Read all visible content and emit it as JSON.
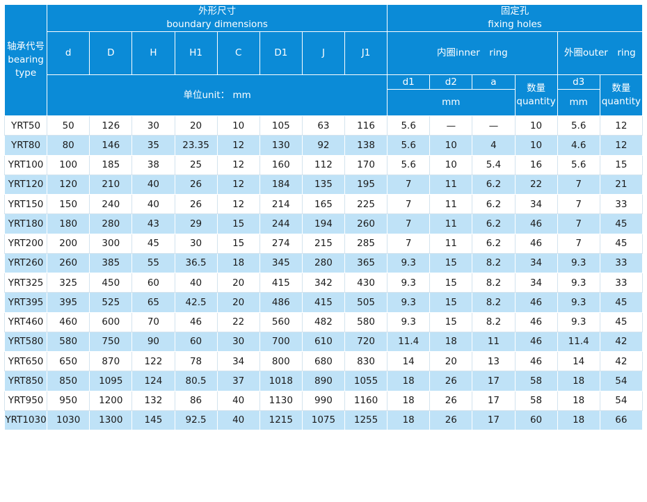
{
  "header": {
    "type_label": [
      "轴承代号",
      "bearing",
      "type"
    ],
    "groups": [
      {
        "title": "外形尺寸",
        "subtitle": "boundary dimensions"
      },
      {
        "title": "固定孔",
        "subtitle": "fixing holes"
      }
    ],
    "columns": [
      "d",
      "D",
      "H",
      "H1",
      "C",
      "D1",
      "J",
      "J1"
    ],
    "rings": [
      "内圈inner　ring",
      "外圈outer　ring"
    ],
    "unit": "单位unit：  mm",
    "hole_columns": [
      "d1",
      "d2",
      "a",
      "d3"
    ],
    "quantity_labels": [
      [
        "数量",
        "quantity"
      ],
      [
        "数量",
        "quantity"
      ]
    ],
    "mm_labels": [
      "mm",
      "mm"
    ]
  },
  "table": {
    "rows": [
      [
        "YRT50",
        50,
        126,
        30,
        20,
        10,
        105,
        63,
        116,
        5.6,
        "—",
        "—",
        10,
        5.6,
        12
      ],
      [
        "YRT80",
        80,
        146,
        35,
        23.35,
        12,
        130,
        92,
        138,
        5.6,
        10,
        4,
        10,
        4.6,
        12
      ],
      [
        "YRT100",
        100,
        185,
        38,
        25,
        12,
        160,
        112,
        170,
        5.6,
        10,
        5.4,
        16,
        5.6,
        15
      ],
      [
        "YRT120",
        120,
        210,
        40,
        26,
        12,
        184,
        135,
        195,
        7,
        11,
        6.2,
        22,
        7,
        21
      ],
      [
        "YRT150",
        150,
        240,
        40,
        26,
        12,
        214,
        165,
        225,
        7,
        11,
        6.2,
        34,
        7,
        33
      ],
      [
        "YRT180",
        180,
        280,
        43,
        29,
        15,
        244,
        194,
        260,
        7,
        11,
        6.2,
        46,
        7,
        45
      ],
      [
        "YRT200",
        200,
        300,
        45,
        30,
        15,
        274,
        215,
        285,
        7,
        11,
        6.2,
        46,
        7,
        45
      ],
      [
        "YRT260",
        260,
        385,
        55,
        36.5,
        18,
        345,
        280,
        365,
        9.3,
        15,
        8.2,
        34,
        9.3,
        33
      ],
      [
        "YRT325",
        325,
        450,
        60,
        40,
        20,
        415,
        342,
        430,
        9.3,
        15,
        8.2,
        34,
        9.3,
        33
      ],
      [
        "YRT395",
        395,
        525,
        65,
        42.5,
        20,
        486,
        415,
        505,
        9.3,
        15,
        8.2,
        46,
        9.3,
        45
      ],
      [
        "YRT460",
        460,
        600,
        70,
        46,
        22,
        560,
        482,
        580,
        9.3,
        15,
        8.2,
        46,
        9.3,
        45
      ],
      [
        "YRT580",
        580,
        750,
        90,
        60,
        30,
        700,
        610,
        720,
        11.4,
        18,
        11,
        46,
        11.4,
        42
      ],
      [
        "YRT650",
        650,
        870,
        122,
        78,
        34,
        800,
        680,
        830,
        14,
        20,
        13,
        46,
        14,
        42
      ],
      [
        "YRT850",
        850,
        1095,
        124,
        80.5,
        37,
        1018,
        890,
        1055,
        18,
        26,
        17,
        58,
        18,
        54
      ],
      [
        "YRT950",
        950,
        1200,
        132,
        86,
        40,
        1130,
        990,
        1160,
        18,
        26,
        17,
        58,
        18,
        54
      ],
      [
        "YRT1030",
        1030,
        1300,
        145,
        92.5,
        40,
        1215,
        1075,
        1255,
        18,
        26,
        17,
        60,
        18,
        66
      ]
    ]
  }
}
